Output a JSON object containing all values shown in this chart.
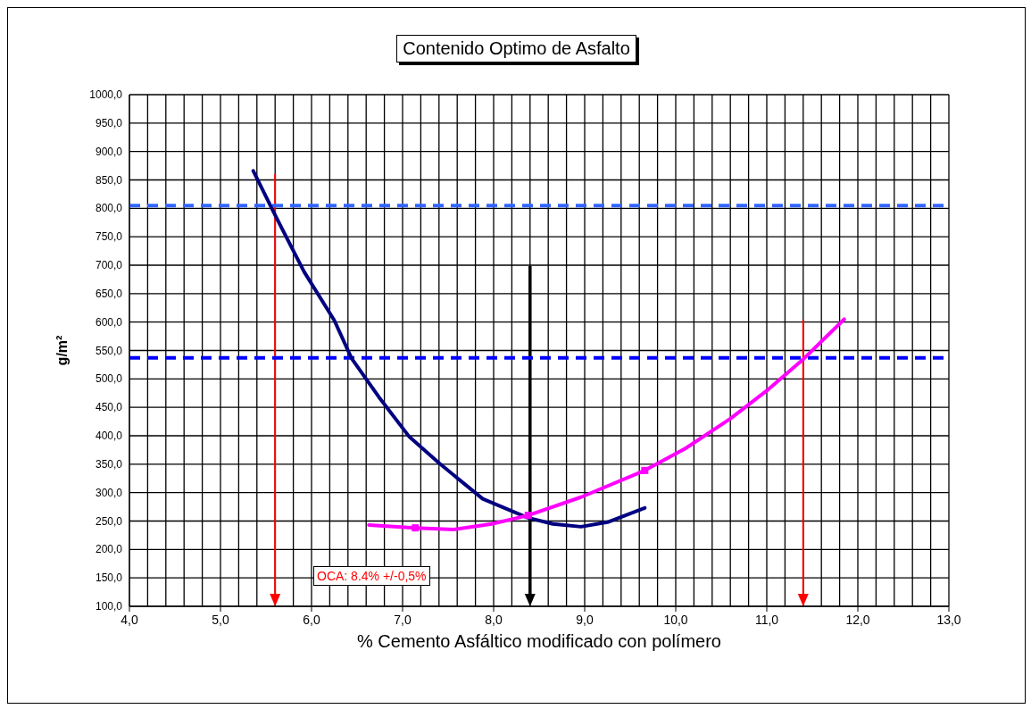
{
  "chart_data": {
    "type": "line",
    "title": "Contenido Optimo de Asfalto",
    "xlabel": "% Cemento Asfáltico modificado con polímero",
    "ylabel": "g/m²",
    "annotations": [
      "OCA: 8.4% +/-0,5%"
    ],
    "series": [
      {
        "type": "line",
        "color": "#000080",
        "x": [
          5.36,
          5.6,
          5.92,
          6.25,
          6.44,
          6.74,
          7.07,
          7.4,
          7.88,
          8.37,
          8.65,
          8.96,
          9.25,
          9.66
        ],
        "values": [
          866,
          788,
          688,
          603,
          536,
          468,
          399,
          352,
          289,
          256,
          245,
          240,
          248,
          273
        ]
      },
      {
        "type": "line",
        "color": "#ff00ff",
        "x": [
          6.63,
          7.14,
          7.56,
          7.98,
          8.38,
          8.96,
          9.66,
          10.11,
          10.6,
          11.02,
          11.41,
          11.85
        ],
        "values": [
          243,
          238,
          235,
          245,
          260,
          292,
          339,
          378,
          430,
          482,
          536,
          605
        ]
      },
      {
        "type": "scatter",
        "color": "#ff00ff",
        "marker": "square",
        "x": [
          7.14,
          8.38,
          9.66
        ],
        "values": [
          238,
          260,
          339
        ]
      }
    ],
    "ref_lines": [
      {
        "axis": "x",
        "value": 5.6,
        "color": "#ff0000"
      },
      {
        "axis": "x",
        "value": 8.4,
        "color": "#000000"
      },
      {
        "axis": "x",
        "value": 11.4,
        "color": "#ff0000"
      },
      {
        "axis": "y",
        "value": 805,
        "color": "#3366ff",
        "line_style": "dashed"
      },
      {
        "axis": "y",
        "value": 537,
        "color": "#0000ff",
        "line_style": "dashed"
      }
    ],
    "xlim": [
      4,
      13
    ],
    "ylim": [
      100,
      1000
    ],
    "xticks": [
      {
        "value": 4,
        "label": "4,0"
      },
      {
        "value": 4.2,
        "label": null
      },
      {
        "value": 4.4,
        "label": null
      },
      {
        "value": 4.6,
        "label": null
      },
      {
        "value": 4.8,
        "label": null
      },
      {
        "value": 5,
        "label": "5,0"
      },
      {
        "value": 5.2,
        "label": null
      },
      {
        "value": 5.4,
        "label": null
      },
      {
        "value": 5.6,
        "label": null
      },
      {
        "value": 5.8,
        "label": null
      },
      {
        "value": 6,
        "label": "6,0"
      },
      {
        "value": 6.2,
        "label": null
      },
      {
        "value": 6.4,
        "label": null
      },
      {
        "value": 6.6,
        "label": null
      },
      {
        "value": 6.8,
        "label": null
      },
      {
        "value": 7,
        "label": "7,0"
      },
      {
        "value": 7.2,
        "label": null
      },
      {
        "value": 7.4,
        "label": null
      },
      {
        "value": 7.6,
        "label": null
      },
      {
        "value": 7.8,
        "label": null
      },
      {
        "value": 8,
        "label": "8,0"
      },
      {
        "value": 8.2,
        "label": null
      },
      {
        "value": 8.4,
        "label": null
      },
      {
        "value": 8.6,
        "label": null
      },
      {
        "value": 8.8,
        "label": null
      },
      {
        "value": 9,
        "label": "9,0"
      },
      {
        "value": 9.2,
        "label": null
      },
      {
        "value": 9.4,
        "label": null
      },
      {
        "value": 9.6,
        "label": null
      },
      {
        "value": 9.8,
        "label": null
      },
      {
        "value": 10,
        "label": "10,0"
      },
      {
        "value": 10.2,
        "label": null
      },
      {
        "value": 10.4,
        "label": null
      },
      {
        "value": 10.6,
        "label": null
      },
      {
        "value": 10.8,
        "label": null
      },
      {
        "value": 11,
        "label": "11,0"
      },
      {
        "value": 11.2,
        "label": null
      },
      {
        "value": 11.4,
        "label": null
      },
      {
        "value": 11.6,
        "label": null
      },
      {
        "value": 11.8,
        "label": null
      },
      {
        "value": 12,
        "label": "12,0"
      },
      {
        "value": 12.2,
        "label": null
      },
      {
        "value": 12.4,
        "label": null
      },
      {
        "value": 12.6,
        "label": null
      },
      {
        "value": 12.8,
        "label": null
      },
      {
        "value": 13,
        "label": "13,0"
      }
    ],
    "yticks": [
      {
        "value": 100,
        "label": "100,0"
      },
      {
        "value": 150,
        "label": "150,0"
      },
      {
        "value": 200,
        "label": "200,0"
      },
      {
        "value": 250,
        "label": "250,0"
      },
      {
        "value": 300,
        "label": "300,0"
      },
      {
        "value": 350,
        "label": "350,0"
      },
      {
        "value": 400,
        "label": "400,0"
      },
      {
        "value": 450,
        "label": "450,0"
      },
      {
        "value": 500,
        "label": "500,0"
      },
      {
        "value": 550,
        "label": "550,0"
      },
      {
        "value": 600,
        "label": "600,0"
      },
      {
        "value": 650,
        "label": "650,0"
      },
      {
        "value": 700,
        "label": "700,0"
      },
      {
        "value": 750,
        "label": "750,0"
      },
      {
        "value": 800,
        "label": "800,0"
      },
      {
        "value": 850,
        "label": "850,0"
      },
      {
        "value": 900,
        "label": "900,0"
      },
      {
        "value": 950,
        "label": "950,0"
      },
      {
        "value": 1000,
        "label": "1000,0"
      }
    ],
    "grid": true,
    "marker": "none",
    "line_style": "solid"
  }
}
